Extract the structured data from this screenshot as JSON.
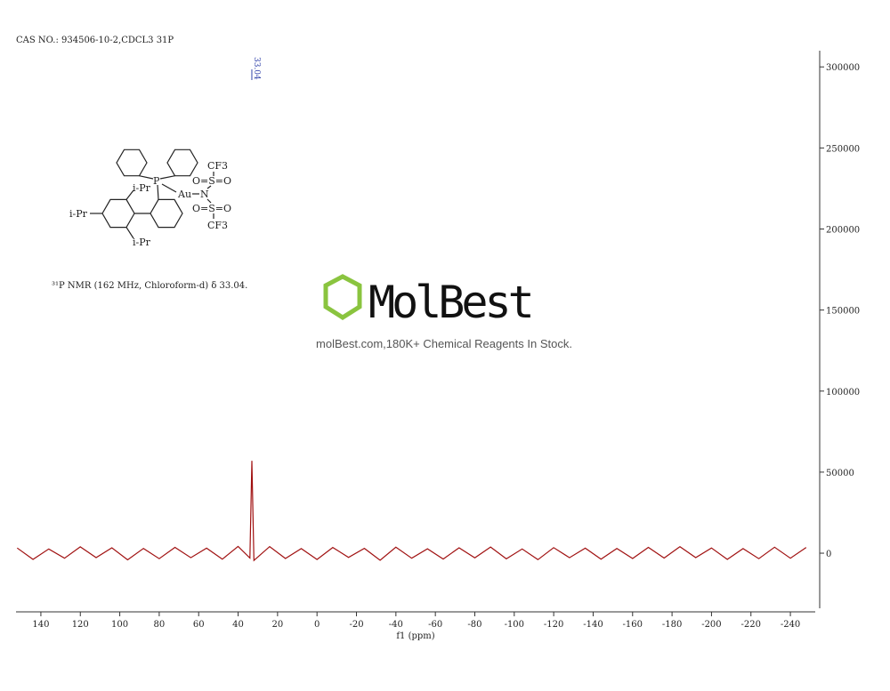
{
  "chart_data": {
    "type": "line",
    "title": "CAS NO.: 934506-10-2,CDCL3 31P",
    "xlabel": "f1 (ppm)",
    "color": "#a01010",
    "x": [
      152,
      144,
      136,
      128,
      120,
      112,
      104,
      96,
      88,
      80,
      72,
      64,
      56,
      48,
      40,
      34,
      33.04,
      32,
      24,
      16,
      8,
      0,
      -8,
      -16,
      -24,
      -32,
      -40,
      -48,
      -56,
      -64,
      -72,
      -80,
      -88,
      -96,
      -104,
      -112,
      -120,
      -128,
      -136,
      -144,
      -152,
      -160,
      -168,
      -176,
      -184,
      -192,
      -200,
      -208,
      -216,
      -224,
      -232,
      -240,
      -248
    ],
    "values": [
      3200,
      -3800,
      2600,
      -3100,
      3900,
      -2700,
      3300,
      -4100,
      2900,
      -3400,
      3600,
      -2800,
      3100,
      -3700,
      4200,
      -3000,
      57000,
      -4500,
      4100,
      -3300,
      2800,
      -3900,
      3500,
      -2600,
      3000,
      -4400,
      3700,
      -3100,
      2700,
      -3600,
      3300,
      -2900,
      3800,
      -3500,
      2600,
      -4000,
      3400,
      -2800,
      3100,
      -3700,
      2900,
      -3300,
      3600,
      -3000,
      4000,
      -2700,
      3200,
      -3800,
      2800,
      -3400,
      3700,
      -3100,
      3500
    ],
    "peaks": [
      33.04
    ],
    "xlim": [
      152.6,
      -252.6
    ],
    "xticks": [
      140,
      120,
      100,
      80,
      60,
      40,
      20,
      0,
      -20,
      -40,
      -60,
      -80,
      -100,
      -120,
      -140,
      -160,
      -180,
      -200,
      -220,
      -240
    ],
    "ylim": [
      -34000,
      310000
    ],
    "yticks": [
      0,
      50000,
      100000,
      150000,
      200000,
      250000,
      300000
    ],
    "nmr_text": "³¹P NMR (162 MHz, Chloroform-d) δ 33.04.",
    "structure_labels": [
      "P",
      "Au",
      "N",
      "O=S=O",
      "O=S=O",
      "CF3",
      "CF3",
      "i-Pr",
      "i-Pr",
      "i-Pr"
    ],
    "watermark": {
      "logo": "MolBest",
      "tagline": "molBest.com,180K+ Chemical Reagents In Stock."
    }
  }
}
